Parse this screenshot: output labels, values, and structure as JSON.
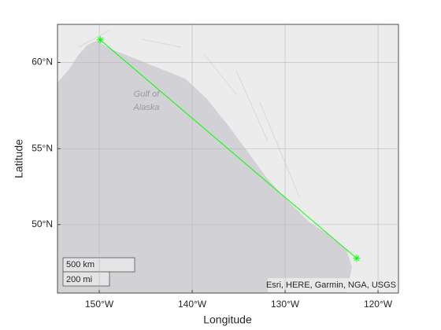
{
  "chart_data": {
    "type": "line",
    "projection": "mercator",
    "x": [
      -149.9,
      -122.3
    ],
    "series": [
      {
        "color": "#00ff00",
        "marker": "*",
        "values": [
          61.2,
          47.6
        ]
      }
    ],
    "xlim": [
      -154.5,
      -117.8
    ],
    "ylim": [
      45,
      62
    ],
    "xticks": [
      {
        "value": -150,
        "label": "150°W"
      },
      {
        "value": -140,
        "label": "140°W"
      },
      {
        "value": -130,
        "label": "130°W"
      },
      {
        "value": -120,
        "label": "120°W"
      }
    ],
    "yticks": [
      {
        "value": 50,
        "label": "50°N"
      },
      {
        "value": 55,
        "label": "55°N"
      },
      {
        "value": 60,
        "label": "60°N"
      }
    ],
    "grid": true,
    "xlabel": "Longitude",
    "ylabel": "Latitude",
    "attribution": "Esri, HERE, Garmin, NGA, USGS",
    "scale_bar": {
      "km": "500 km",
      "mi": "200 mi"
    },
    "place_labels": [
      "Gulf of",
      "Alaska"
    ]
  }
}
